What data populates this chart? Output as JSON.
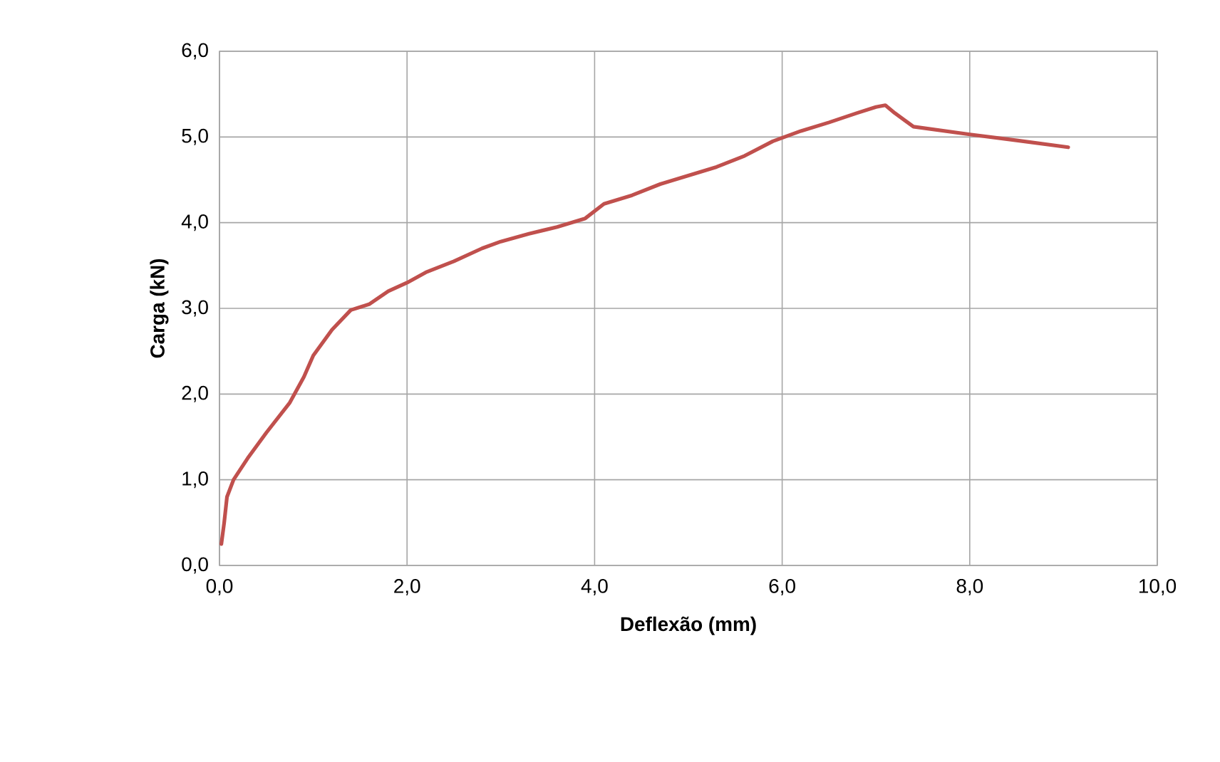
{
  "chart_data": {
    "type": "line",
    "xlabel": "Deflexão (mm)",
    "ylabel": "Carga (kN)",
    "xlim": [
      0,
      10
    ],
    "ylim": [
      0,
      6
    ],
    "xticks": [
      {
        "value": 0,
        "label": "0,0"
      },
      {
        "value": 2,
        "label": "2,0"
      },
      {
        "value": 4,
        "label": "4,0"
      },
      {
        "value": 6,
        "label": "6,0"
      },
      {
        "value": 8,
        "label": "8,0"
      },
      {
        "value": 10,
        "label": "10,0"
      }
    ],
    "yticks": [
      {
        "value": 0,
        "label": "0,0"
      },
      {
        "value": 1,
        "label": "1,0"
      },
      {
        "value": 2,
        "label": "2,0"
      },
      {
        "value": 3,
        "label": "3,0"
      },
      {
        "value": 4,
        "label": "4,0"
      },
      {
        "value": 5,
        "label": "5,0"
      },
      {
        "value": 6,
        "label": "6,0"
      }
    ],
    "grid": true,
    "marker": "none",
    "line_style": "solid",
    "series": [
      {
        "color": "#c0504d",
        "x": [
          0.02,
          0.05,
          0.08,
          0.15,
          0.3,
          0.5,
          0.75,
          0.9,
          1.0,
          1.2,
          1.4,
          1.6,
          1.8,
          2.0,
          2.2,
          2.5,
          2.8,
          3.0,
          3.3,
          3.6,
          3.9,
          4.1,
          4.4,
          4.7,
          5.0,
          5.3,
          5.6,
          5.9,
          6.2,
          6.5,
          6.8,
          7.0,
          7.1,
          7.2,
          7.4,
          8.0,
          8.5,
          9.05
        ],
        "values": [
          0.25,
          0.5,
          0.8,
          1.0,
          1.25,
          1.55,
          1.9,
          2.2,
          2.45,
          2.75,
          2.98,
          3.05,
          3.2,
          3.3,
          3.42,
          3.55,
          3.7,
          3.78,
          3.87,
          3.95,
          4.05,
          4.22,
          4.32,
          4.45,
          4.55,
          4.65,
          4.78,
          4.95,
          5.07,
          5.17,
          5.28,
          5.35,
          5.37,
          5.28,
          5.12,
          5.03,
          4.96,
          4.88
        ]
      }
    ]
  }
}
